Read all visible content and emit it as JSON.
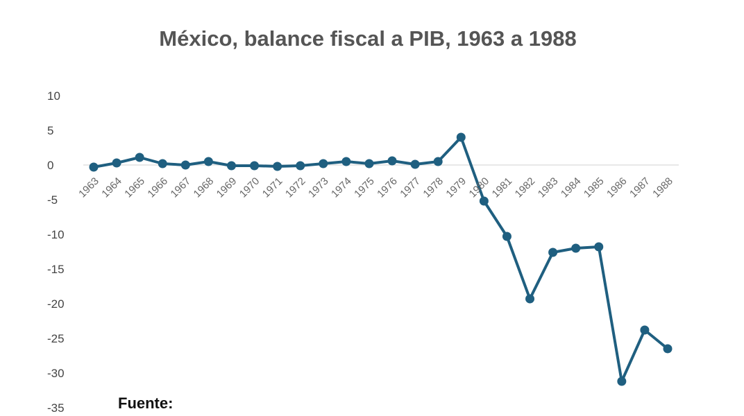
{
  "chart_data": {
    "type": "line",
    "title": "México, balance fiscal a PIB, 1963 a 1988",
    "xlabel": "",
    "ylabel": "",
    "source_label": "Fuente:",
    "ylim": [
      -35,
      10
    ],
    "yticks": [
      "10",
      "5",
      "0",
      "-5",
      "-10",
      "-15",
      "-20",
      "-25",
      "-30",
      "-35"
    ],
    "grid": false,
    "legend": "none",
    "line_color": "#1f5f80",
    "zero_line_color": "#e0e0e0",
    "categories": [
      "1963",
      "1964",
      "1965",
      "1966",
      "1967",
      "1968",
      "1969",
      "1970",
      "1971",
      "1972",
      "1973",
      "1974",
      "1975",
      "1976",
      "1977",
      "1978",
      "1979",
      "1980",
      "1981",
      "1982",
      "1983",
      "1984",
      "1985",
      "1986",
      "1987",
      "1988"
    ],
    "series": [
      {
        "values": [
          -0.3,
          0.3,
          1.1,
          0.2,
          0.0,
          0.5,
          -0.1,
          -0.1,
          -0.2,
          -0.1,
          0.2,
          0.5,
          0.2,
          0.6,
          0.1,
          0.5,
          4.0,
          -5.2,
          -10.3,
          -19.3,
          -12.6,
          -12.0,
          -11.8,
          -31.2,
          -23.8,
          -26.5
        ]
      }
    ]
  }
}
